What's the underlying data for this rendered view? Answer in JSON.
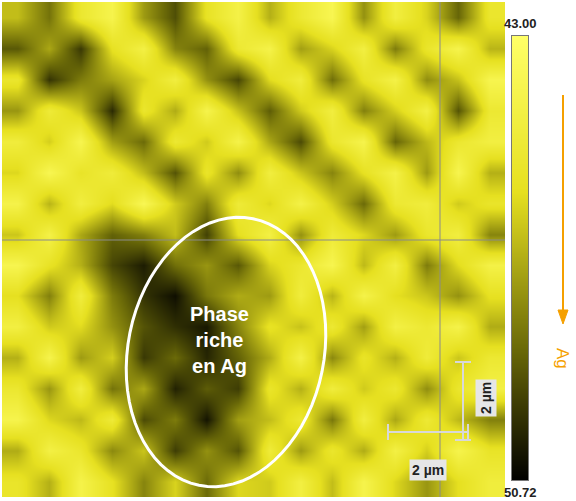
{
  "chart_data": {
    "type": "heatmap",
    "cells": [
      [
        46.5,
        48.2,
        45.1,
        44.0,
        47.3,
        49.0,
        45.5,
        44.2,
        46.8,
        45.0,
        43.8,
        47.5,
        44.5,
        46.0,
        48.5,
        45.2
      ],
      [
        48.8,
        47.0,
        49.5,
        45.6,
        44.3,
        47.8,
        48.6,
        45.0,
        44.1,
        47.2,
        46.0,
        44.4,
        48.0,
        45.3,
        44.0,
        46.7
      ],
      [
        45.2,
        49.6,
        48.0,
        47.1,
        46.0,
        44.5,
        47.5,
        49.2,
        45.8,
        44.6,
        48.3,
        45.5,
        44.2,
        47.6,
        46.4,
        43.9
      ],
      [
        47.4,
        44.8,
        46.3,
        49.8,
        45.2,
        46.9,
        44.0,
        46.4,
        48.7,
        46.2,
        44.5,
        47.9,
        46.1,
        44.3,
        48.9,
        45.0
      ],
      [
        44.6,
        46.1,
        43.9,
        47.2,
        48.4,
        45.0,
        46.2,
        44.1,
        47.0,
        49.1,
        45.2,
        44.0,
        48.5,
        46.6,
        45.1,
        44.4
      ],
      [
        45.9,
        43.8,
        45.4,
        44.7,
        46.5,
        48.9,
        45.3,
        47.6,
        44.5,
        46.3,
        47.8,
        45.6,
        44.2,
        47.3,
        43.9,
        46.8
      ],
      [
        44.1,
        46.7,
        44.5,
        45.8,
        43.7,
        46.2,
        47.9,
        44.8,
        45.9,
        44.2,
        46.1,
        48.4,
        45.0,
        44.6,
        46.2,
        45.3
      ],
      [
        46.3,
        44.2,
        47.0,
        48.6,
        47.9,
        46.5,
        49.3,
        45.7,
        44.3,
        47.5,
        44.8,
        45.9,
        47.3,
        45.2,
        44.5,
        47.8
      ],
      [
        43.9,
        45.5,
        46.8,
        49.2,
        50.1,
        48.3,
        47.4,
        48.8,
        46.0,
        45.1,
        43.9,
        46.6,
        44.4,
        48.0,
        45.8,
        44.2
      ],
      [
        45.7,
        47.9,
        44.6,
        48.0,
        49.6,
        50.4,
        48.1,
        46.9,
        47.3,
        44.6,
        46.7,
        44.1,
        45.7,
        46.3,
        47.5,
        45.6
      ],
      [
        44.4,
        46.2,
        45.8,
        47.5,
        48.9,
        49.7,
        50.2,
        47.8,
        45.5,
        46.4,
        45.0,
        47.2,
        44.3,
        45.0,
        44.1,
        46.9
      ],
      [
        46.8,
        44.0,
        47.3,
        46.1,
        49.5,
        48.4,
        49.9,
        48.6,
        46.9,
        44.2,
        47.7,
        45.4,
        46.8,
        44.7,
        46.3,
        45.0
      ],
      [
        45.1,
        47.4,
        44.5,
        48.2,
        47.0,
        50.0,
        48.7,
        49.4,
        45.3,
        46.8,
        44.6,
        46.2,
        45.1,
        47.6,
        45.2,
        44.3
      ],
      [
        44.0,
        45.9,
        46.6,
        44.8,
        49.1,
        48.0,
        50.3,
        47.2,
        46.5,
        45.0,
        48.1,
        44.5,
        47.0,
        44.9,
        46.6,
        47.9
      ],
      [
        46.9,
        44.3,
        45.2,
        47.7,
        46.3,
        49.4,
        47.5,
        48.9,
        44.7,
        47.3,
        45.2,
        46.9,
        44.3,
        46.1,
        44.0,
        45.4
      ],
      [
        45.3,
        46.8,
        44.1,
        45.6,
        47.8,
        46.0,
        48.4,
        45.9,
        46.2,
        44.4,
        46.5,
        44.0,
        45.9,
        47.4,
        45.7,
        44.6
      ]
    ],
    "colorbar": {
      "range": [
        43,
        50.72
      ],
      "ticks": [
        {
          "value": 43,
          "label": "43.00"
        },
        {
          "value": 50.72,
          "label": "50.72"
        }
      ]
    },
    "colorbar_label": "Ag",
    "annotations": [
      "Phase riche en Ag"
    ],
    "scale_bars": [
      "2 µm",
      "2 µm"
    ],
    "tick_labels": false
  }
}
